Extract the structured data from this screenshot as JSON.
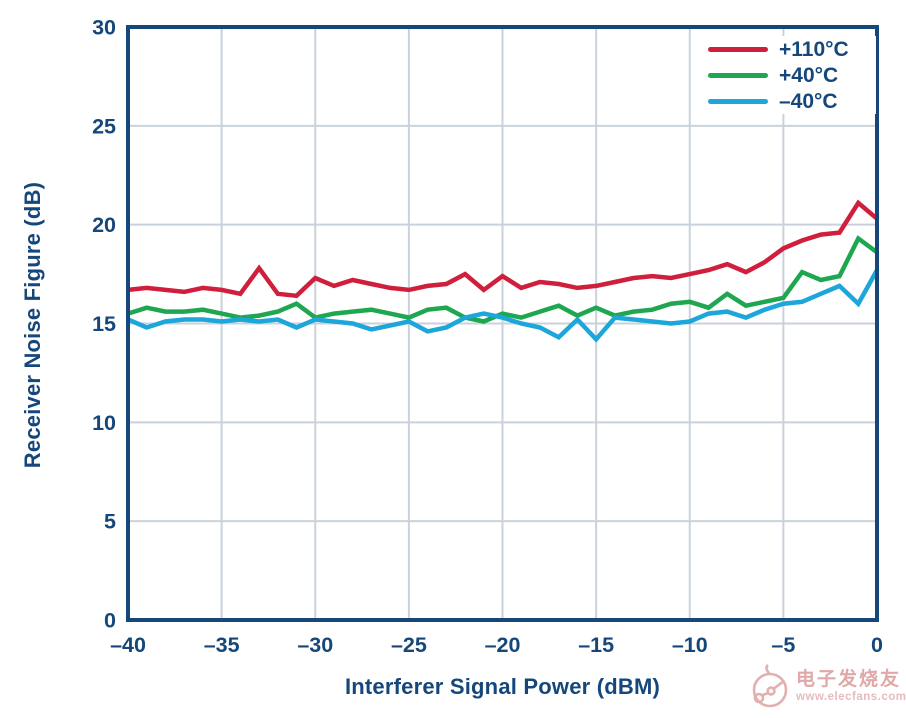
{
  "chart_data": {
    "type": "line",
    "title": "",
    "xlabel": "Interferer Signal Power (dBM)",
    "ylabel": "Receiver Noise Figure (dB)",
    "xlim": [
      -40,
      0
    ],
    "ylim": [
      0,
      30
    ],
    "x_ticks": [
      -40,
      -35,
      -30,
      -25,
      -20,
      -15,
      -10,
      -5,
      0
    ],
    "y_ticks": [
      0,
      5,
      10,
      15,
      20,
      25,
      30
    ],
    "grid": true,
    "legend_position": "top-right-inside",
    "axis_color": "#16477b",
    "grid_color": "#c9d2dc",
    "x": [
      -40,
      -39,
      -38,
      -37,
      -36,
      -35,
      -34,
      -33,
      -32,
      -31,
      -30,
      -29,
      -28,
      -27,
      -26,
      -25,
      -24,
      -23,
      -22,
      -21,
      -20,
      -19,
      -18,
      -17,
      -16,
      -15,
      -14,
      -13,
      -12,
      -11,
      -10,
      -9,
      -8,
      -7,
      -6,
      -5,
      -4,
      -3,
      -2,
      -1,
      0
    ],
    "series": [
      {
        "name": "+110°C",
        "color": "#d01f3c",
        "values": [
          16.7,
          16.8,
          16.7,
          16.6,
          16.8,
          16.7,
          16.5,
          17.8,
          16.5,
          16.4,
          17.3,
          16.9,
          17.2,
          17.0,
          16.8,
          16.7,
          16.9,
          17.0,
          17.5,
          16.7,
          17.4,
          16.8,
          17.1,
          17.0,
          16.8,
          16.9,
          17.1,
          17.3,
          17.4,
          17.3,
          17.5,
          17.7,
          18.0,
          17.6,
          18.1,
          18.8,
          19.2,
          19.5,
          19.6,
          21.1,
          20.3
        ]
      },
      {
        "name": "+40°C",
        "color": "#1ea750",
        "values": [
          15.5,
          15.8,
          15.6,
          15.6,
          15.7,
          15.5,
          15.3,
          15.4,
          15.6,
          16.0,
          15.3,
          15.5,
          15.6,
          15.7,
          15.5,
          15.3,
          15.7,
          15.8,
          15.3,
          15.1,
          15.5,
          15.3,
          15.6,
          15.9,
          15.4,
          15.8,
          15.4,
          15.6,
          15.7,
          16.0,
          16.1,
          15.8,
          16.5,
          15.9,
          16.1,
          16.3,
          17.6,
          17.2,
          17.4,
          19.3,
          18.6
        ]
      },
      {
        "name": "–40°C",
        "color": "#1ca6d9",
        "values": [
          15.2,
          14.8,
          15.1,
          15.2,
          15.2,
          15.1,
          15.2,
          15.1,
          15.2,
          14.8,
          15.2,
          15.1,
          15.0,
          14.7,
          14.9,
          15.1,
          14.6,
          14.8,
          15.3,
          15.5,
          15.3,
          15.0,
          14.8,
          14.3,
          15.2,
          14.2,
          15.3,
          15.2,
          15.1,
          15.0,
          15.1,
          15.5,
          15.6,
          15.3,
          15.7,
          16.0,
          16.1,
          16.5,
          16.9,
          16.0,
          17.7
        ]
      }
    ]
  },
  "watermark": {
    "title": "电子发烧友",
    "url": "www.elecfans.com",
    "color": "#dc9a9a"
  }
}
